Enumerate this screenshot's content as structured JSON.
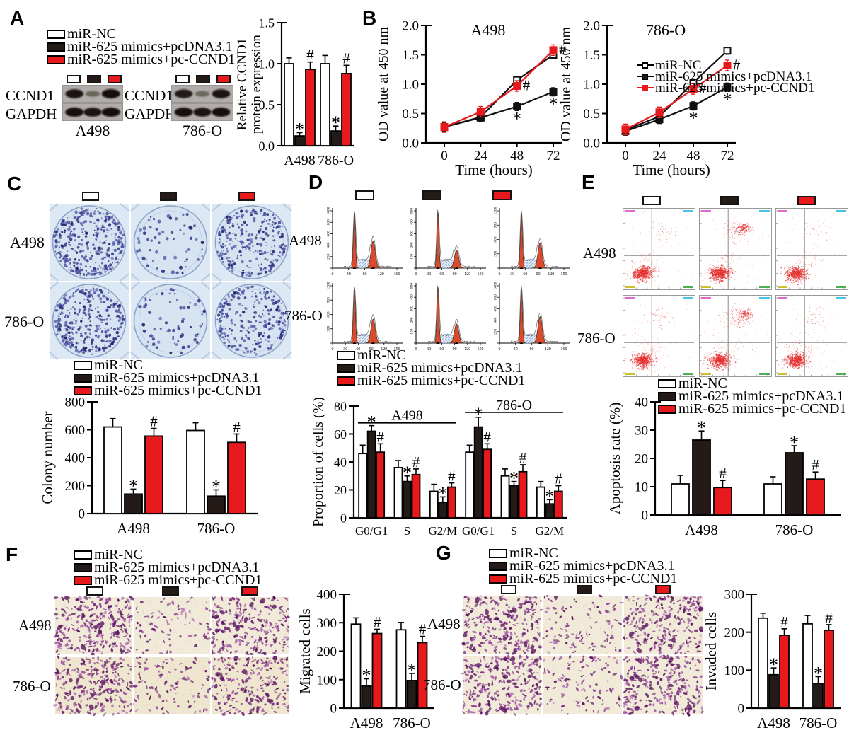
{
  "colors": {
    "white": "#ffffff",
    "black": "#241b18",
    "red": "#e8191c",
    "hist_fill": "#db4a2b",
    "colony_bg": "#dce8f4",
    "scatter_dot": "#e63030",
    "micro_bg": "#f1ead9",
    "micro_bg2": "#efe6cf"
  },
  "legend": {
    "items": [
      {
        "label": "miR-NC"
      },
      {
        "label": "miR-625 mimics+pcDNA3.1"
      },
      {
        "label": "miR-625 mimics+pc-CCND1"
      }
    ]
  },
  "panels": {
    "A": {
      "letter": "A",
      "blots": [
        {
          "cell_line": "A498",
          "rows": [
            {
              "label": "CCND1",
              "bands": [
                0.95,
                0.3,
                1.0
              ]
            },
            {
              "label": "GAPDH",
              "bands": [
                1,
                0.95,
                1
              ]
            }
          ]
        },
        {
          "cell_line": "786-O",
          "rows": [
            {
              "label": "CCND1",
              "bands": [
                0.9,
                0.28,
                0.95
              ]
            },
            {
              "label": "GAPDH",
              "bands": [
                1,
                0.95,
                1
              ]
            }
          ]
        }
      ],
      "chart": {
        "type": "bar",
        "ylabel": "Relative CCND1 protein expression",
        "ylabel_lines": [
          "Relative CCND1",
          "protein expression"
        ],
        "ymax": 1.5,
        "yticks": [
          {
            "v": 0,
            "t": "0.0"
          },
          {
            "v": 0.5,
            "t": "0.5"
          },
          {
            "v": 1,
            "t": "1.0"
          },
          {
            "v": 1.5,
            "t": "1.5"
          }
        ],
        "categories": [
          "A498",
          "786-O"
        ],
        "series": [
          "miR-NC",
          "miR-625 mimics+pcDNA3.1",
          "miR-625 mimics+pc-CCND1"
        ],
        "values": [
          [
            1.0,
            0.12,
            0.93
          ],
          [
            1.0,
            0.18,
            0.88
          ]
        ],
        "errors": [
          [
            0.07,
            0.04,
            0.09
          ],
          [
            0.1,
            0.06,
            0.1
          ]
        ],
        "marks": [
          [
            "",
            "*",
            "#"
          ],
          [
            "",
            "*",
            "#"
          ]
        ]
      }
    },
    "B": {
      "letter": "B",
      "charts": [
        {
          "type": "line",
          "title": "A498",
          "ylabel": "OD value at 450 nm",
          "xlabel": "Time (hours)",
          "ymax": 2,
          "yticks": [
            {
              "v": 0,
              "t": "0.0"
            },
            {
              "v": 0.5,
              "t": "0.5"
            },
            {
              "v": 1,
              "t": "1.0"
            },
            {
              "v": 1.5,
              "t": "1.5"
            },
            {
              "v": 2,
              "t": "2.0"
            }
          ],
          "xticks": [
            "0",
            "24",
            "48",
            "72"
          ],
          "series": [
            {
              "name": "miR-NC",
              "color": "black",
              "marker": "open",
              "err": 0.06,
              "values": [
                0.27,
                0.44,
                1.07,
                1.5
              ],
              "marks": [
                "",
                "",
                "",
                ""
              ]
            },
            {
              "name": "miR-625 mimics+pcDNA3.1",
              "color": "black",
              "marker": "filled",
              "err": 0.07,
              "values": [
                0.27,
                0.43,
                0.62,
                0.87
              ],
              "marks": [
                "",
                "",
                "*",
                "*"
              ]
            },
            {
              "name": "miR-625 mimics+pc-CCND1",
              "color": "red",
              "marker": "filled",
              "err": 0.09,
              "values": [
                0.27,
                0.53,
                0.97,
                1.58
              ],
              "marks": [
                "",
                "",
                "#",
                "#"
              ]
            }
          ]
        },
        {
          "type": "line",
          "title": "786-O",
          "ylabel": "OD value at 450 nm",
          "xlabel": "Time (hours)",
          "ymax": 2,
          "yticks": [
            {
              "v": 0,
              "t": "0.0"
            },
            {
              "v": 0.5,
              "t": "0.5"
            },
            {
              "v": 1,
              "t": "1.0"
            },
            {
              "v": 1.5,
              "t": "1.5"
            },
            {
              "v": 2,
              "t": "2.0"
            }
          ],
          "xticks": [
            "0",
            "24",
            "48",
            "72"
          ],
          "series": [
            {
              "name": "miR-NC",
              "color": "black",
              "marker": "open",
              "err": 0.06,
              "values": [
                0.22,
                0.45,
                1.03,
                1.57
              ],
              "marks": [
                "",
                "",
                "",
                ""
              ]
            },
            {
              "name": "miR-625 mimics+pcDNA3.1",
              "color": "black",
              "marker": "filled",
              "err": 0.07,
              "values": [
                0.2,
                0.4,
                0.63,
                0.95
              ],
              "marks": [
                "",
                "",
                "*",
                "*"
              ]
            },
            {
              "name": "miR-625 mimics+pc-CCND1",
              "color": "red",
              "marker": "filled",
              "err": 0.09,
              "values": [
                0.23,
                0.52,
                0.92,
                1.32
              ],
              "marks": [
                "",
                "",
                "#",
                "#"
              ]
            }
          ]
        }
      ]
    },
    "C": {
      "letter": "C",
      "row_labels": [
        "A498",
        "786-O"
      ],
      "well_density": [
        [
          380,
          60,
          300
        ],
        [
          350,
          62,
          285
        ]
      ],
      "chart": {
        "type": "bar",
        "ylabel": "Colony number",
        "ymax": 800,
        "yticks": [
          {
            "v": 0,
            "t": "0"
          },
          {
            "v": 200,
            "t": "200"
          },
          {
            "v": 400,
            "t": "400"
          },
          {
            "v": 600,
            "t": "600"
          },
          {
            "v": 800,
            "t": "800"
          }
        ],
        "categories": [
          "A498",
          "786-O"
        ],
        "values": [
          [
            620,
            140,
            555
          ],
          [
            595,
            125,
            510
          ]
        ],
        "errors": [
          [
            60,
            35,
            55
          ],
          [
            55,
            45,
            60
          ]
        ],
        "marks": [
          [
            "",
            "*",
            "#"
          ],
          [
            "",
            "*",
            "#"
          ]
        ]
      }
    },
    "D": {
      "letter": "D",
      "row_labels": [
        "A498",
        "786-O"
      ],
      "histograms": [
        [
          {
            "xticks": [
              "0",
              "40",
              "80",
              "120",
              "160"
            ],
            "yticks": [
              "0",
              "200",
              "400",
              "600",
              "800",
              "1000"
            ],
            "g2_height": 0.45
          },
          {
            "xticks": [
              "0",
              "30",
              "60",
              "90",
              "120",
              "150"
            ],
            "yticks": [
              "0",
              "100",
              "200",
              "300",
              "400",
              "500"
            ],
            "g2_height": 0.3
          },
          {
            "xticks": [
              "0",
              "30",
              "60",
              "90",
              "120",
              "150"
            ],
            "yticks": [
              "0",
              "300",
              "600",
              "900",
              "1200"
            ],
            "g2_height": 0.42
          }
        ],
        [
          {
            "xticks": [
              "0",
              "30",
              "60",
              "90",
              "120",
              "150"
            ],
            "yticks": [
              "0",
              "300",
              "600",
              "900",
              "1200"
            ],
            "g2_height": 0.4
          },
          {
            "xticks": [
              "0",
              "30",
              "60",
              "90",
              "120",
              "150"
            ],
            "yticks": [
              "0",
              "100",
              "200",
              "300",
              "400",
              "500"
            ],
            "g2_height": 0.32
          },
          {
            "xticks": [
              "0",
              "40",
              "80",
              "120",
              "160"
            ],
            "yticks": [
              "0",
              "200",
              "400",
              "600",
              "800",
              "1000"
            ],
            "g2_height": 0.44
          }
        ]
      ],
      "chart": {
        "type": "bar",
        "ylabel": "Proportion of cells (%)",
        "ymax": 80,
        "yticks": [
          {
            "v": 0,
            "t": "0"
          },
          {
            "v": 20,
            "t": "20"
          },
          {
            "v": 40,
            "t": "40"
          },
          {
            "v": 60,
            "t": "60"
          },
          {
            "v": 80,
            "t": "80"
          }
        ],
        "categories": [
          "G0/G1",
          "S",
          "G2/M",
          "G0/G1",
          "S",
          "G2/M"
        ],
        "group_headers": [
          {
            "label": "A498",
            "from": 0,
            "to": 2,
            "yv": 68
          },
          {
            "label": "786-O",
            "from": 3,
            "to": 5,
            "yv": 75.5
          }
        ],
        "values": [
          [
            46,
            62,
            47
          ],
          [
            36,
            26,
            31
          ],
          [
            19,
            11,
            22
          ],
          [
            47,
            65,
            49
          ],
          [
            30,
            23,
            33
          ],
          [
            22,
            10,
            19
          ]
        ],
        "errors": [
          [
            6,
            4,
            6
          ],
          [
            5,
            4,
            4
          ],
          [
            5,
            4,
            3
          ],
          [
            5,
            7,
            4
          ],
          [
            5,
            3,
            5
          ],
          [
            4,
            3,
            4
          ]
        ],
        "marks": [
          [
            "",
            "*",
            "#"
          ],
          [
            "",
            "*",
            "#"
          ],
          [
            "",
            "*",
            "#"
          ],
          [
            "",
            "*",
            "#"
          ],
          [
            "",
            "*",
            "#"
          ],
          [
            "",
            "*",
            "#"
          ]
        ]
      }
    },
    "E": {
      "letter": "E",
      "row_labels": [
        "A498",
        "786-O"
      ],
      "upper_cluster_density": [
        [
          0.35,
          1.0,
          0.28
        ],
        [
          0.4,
          0.95,
          0.33
        ]
      ],
      "chart": {
        "type": "bar",
        "ylabel": "Apoptosis rate (%)",
        "ymax": 40,
        "yticks": [
          {
            "v": 0,
            "t": "0"
          },
          {
            "v": 10,
            "t": "10"
          },
          {
            "v": 20,
            "t": "20"
          },
          {
            "v": 30,
            "t": "30"
          },
          {
            "v": 40,
            "t": "40"
          }
        ],
        "categories": [
          "A498",
          "786-O"
        ],
        "values": [
          [
            11,
            26.5,
            9.7
          ],
          [
            11,
            22,
            12.7
          ]
        ],
        "errors": [
          [
            3,
            3.2,
            2.5
          ],
          [
            2.5,
            2.5,
            2.5
          ]
        ],
        "marks": [
          [
            "",
            "*",
            "#"
          ],
          [
            "",
            "*",
            "#"
          ]
        ]
      }
    },
    "F": {
      "letter": "F",
      "row_labels": [
        "A498",
        "786-O"
      ],
      "field_density": [
        [
          260,
          80,
          235
        ],
        [
          235,
          95,
          215
        ]
      ],
      "chart": {
        "type": "bar",
        "ylabel": "Migrated cells",
        "ymax": 400,
        "yticks": [
          {
            "v": 0,
            "t": "0"
          },
          {
            "v": 100,
            "t": "100"
          },
          {
            "v": 200,
            "t": "200"
          },
          {
            "v": 300,
            "t": "300"
          },
          {
            "v": 400,
            "t": "400"
          }
        ],
        "categories": [
          "A498",
          "786-O"
        ],
        "values": [
          [
            295,
            78,
            262
          ],
          [
            275,
            97,
            230
          ]
        ],
        "errors": [
          [
            22,
            25,
            15
          ],
          [
            26,
            25,
            22
          ]
        ],
        "marks": [
          [
            "",
            "*",
            "#"
          ],
          [
            "",
            "*",
            "#"
          ]
        ]
      }
    },
    "G": {
      "letter": "G",
      "row_labels": [
        "A498",
        "786-O"
      ],
      "field_density": [
        [
          245,
          100,
          235
        ],
        [
          255,
          100,
          245
        ]
      ],
      "chart": {
        "type": "bar",
        "ylabel": "Invaded cells",
        "ymax": 300,
        "yticks": [
          {
            "v": 0,
            "t": "0"
          },
          {
            "v": 100,
            "t": "100"
          },
          {
            "v": 200,
            "t": "200"
          },
          {
            "v": 300,
            "t": "300"
          }
        ],
        "categories": [
          "A498",
          "786-O"
        ],
        "values": [
          [
            237,
            88,
            192
          ],
          [
            222,
            65,
            205
          ]
        ],
        "errors": [
          [
            13,
            18,
            17
          ],
          [
            22,
            18,
            15
          ]
        ],
        "marks": [
          [
            "",
            "*",
            "#"
          ],
          [
            "",
            "*",
            "#"
          ]
        ]
      }
    }
  }
}
